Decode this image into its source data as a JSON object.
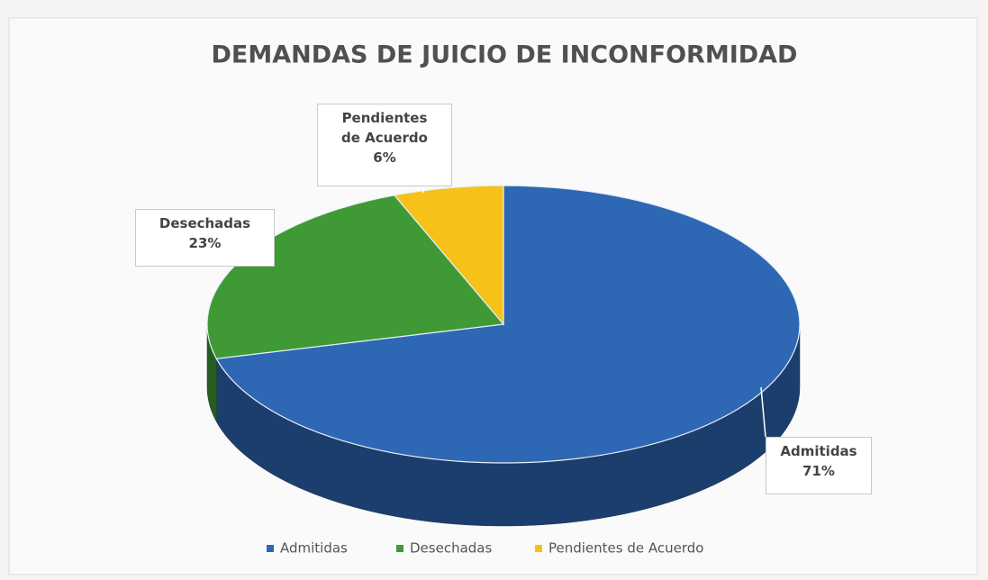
{
  "chart_data": {
    "type": "pie",
    "title": "DEMANDAS DE JUICIO DE INCONFORMIDAD",
    "categories": [
      "Admitidas",
      "Desechadas",
      "Pendientes de Acuerdo"
    ],
    "values": [
      71,
      23,
      6
    ],
    "value_labels": [
      "71%",
      "23%",
      "6%"
    ],
    "colors": [
      "#2e67b4",
      "#3f9a36",
      "#f6c21a"
    ],
    "legend": "bottom"
  }
}
